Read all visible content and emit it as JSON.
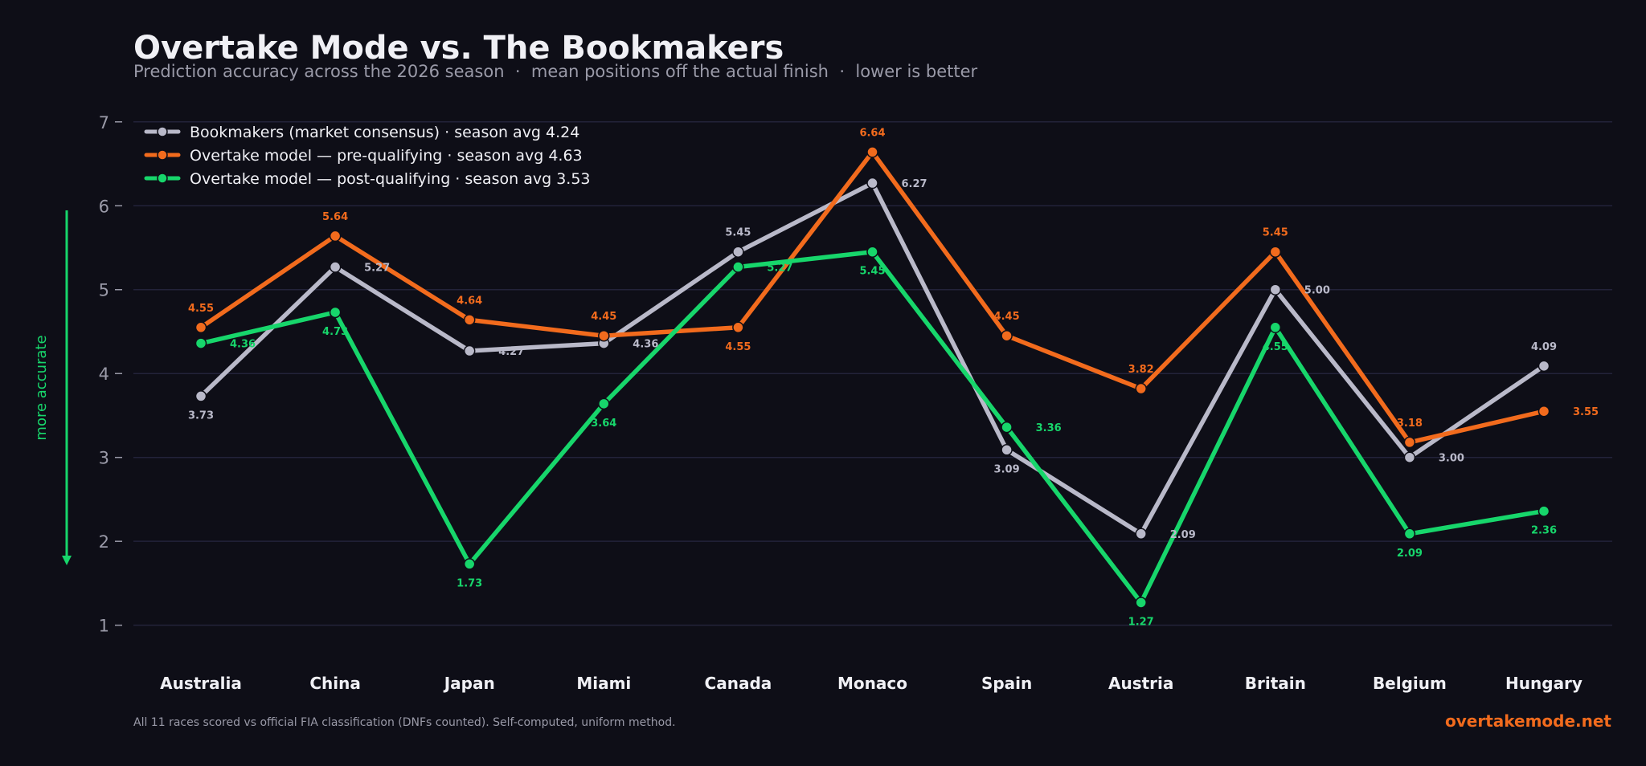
{
  "title": "Overtake Mode vs. The Bookmakers",
  "subtitle": "Prediction accuracy across the 2026 season  ·  mean positions off the actual finish  ·  lower is better",
  "side_label": "more accurate",
  "footer_note": "All 11 races scored vs official FIA classification (DNFs counted). Self-computed, uniform method.",
  "brand": "overtakemode.net",
  "colors": {
    "background": "#0e0e17",
    "grid": "#23233a",
    "bookmakers": "#b9b9c9",
    "pre": "#f26b1d",
    "post": "#17d66b",
    "text": "#f0f0f5",
    "muted": "#9a9aa8"
  },
  "chart_data": {
    "type": "line",
    "categories": [
      "Australia",
      "China",
      "Japan",
      "Miami",
      "Canada",
      "Monaco",
      "Spain",
      "Austria",
      "Britain",
      "Belgium",
      "Hungary"
    ],
    "ylim": [
      0.7,
      7.4
    ],
    "yticks": [
      1,
      2,
      3,
      4,
      5,
      6,
      7
    ],
    "grid": "horizontal",
    "legend_position": "top-left",
    "series": [
      {
        "key": "bookmakers",
        "name": "Bookmakers (market consensus)",
        "legend_suffix": "  ·  season avg 4.24",
        "values": [
          3.73,
          5.27,
          4.27,
          4.36,
          5.45,
          6.27,
          3.09,
          2.09,
          5.0,
          3.0,
          4.09
        ],
        "labels": [
          "3.73",
          "5.27",
          "4.27",
          "4.36",
          "5.45",
          "6.27",
          "3.09",
          "2.09",
          "5.00",
          "3.00",
          "4.09"
        ],
        "label_pos": [
          "below",
          "right",
          "right",
          "right",
          "above",
          "right",
          "below",
          "right",
          "right",
          "right",
          "above"
        ]
      },
      {
        "key": "pre",
        "name": "Overtake model — pre-qualifying",
        "legend_suffix": "  ·  season avg 4.63",
        "values": [
          4.55,
          5.64,
          4.64,
          4.45,
          4.55,
          6.64,
          4.45,
          3.82,
          5.45,
          3.18,
          3.55
        ],
        "labels": [
          "4.55",
          "5.64",
          "4.64",
          "4.45",
          "4.55",
          "6.64",
          "4.45",
          "3.82",
          "5.45",
          "3.18",
          "3.55"
        ],
        "label_pos": [
          "above",
          "above",
          "above",
          "above",
          "below",
          "above",
          "above",
          "above",
          "above",
          "above",
          "right"
        ]
      },
      {
        "key": "post",
        "name": "Overtake model — post-qualifying",
        "legend_suffix": "  ·  season avg 3.53",
        "values": [
          4.36,
          4.73,
          1.73,
          3.64,
          5.27,
          5.45,
          3.36,
          1.27,
          4.55,
          2.09,
          2.36
        ],
        "labels": [
          "4.36",
          "4.73",
          "1.73",
          "3.64",
          "5.27",
          "5.45",
          "3.36",
          "1.27",
          "4.55",
          "2.09",
          "2.36"
        ],
        "label_pos": [
          "right",
          "below",
          "below",
          "below",
          "right",
          "below",
          "right",
          "below",
          "below",
          "below",
          "below"
        ]
      }
    ]
  }
}
